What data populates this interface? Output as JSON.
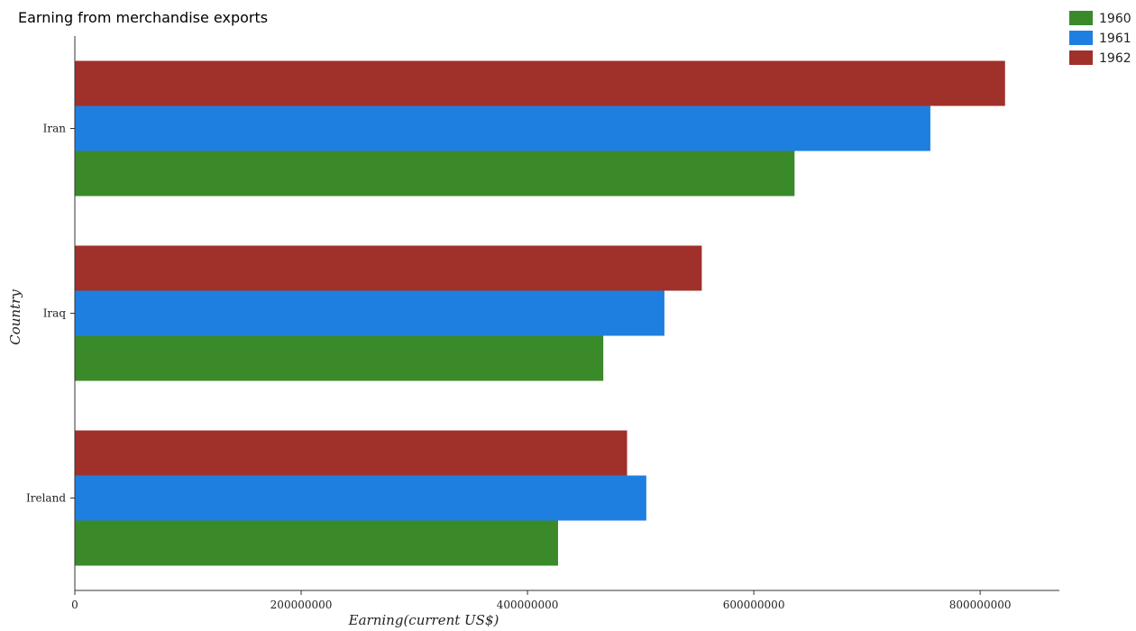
{
  "chart_data": {
    "type": "bar",
    "orientation": "horizontal",
    "title": "Earning from merchandise exports",
    "xlabel": "Earning(current US$)",
    "ylabel": "Country",
    "categories": [
      "Iran",
      "Iraq",
      "Ireland"
    ],
    "series": [
      {
        "name": "1960",
        "color": "#3a8a2a",
        "values": [
          636000000,
          467000000,
          427000000
        ]
      },
      {
        "name": "1961",
        "color": "#1f7fe0",
        "values": [
          756000000,
          521000000,
          505000000
        ]
      },
      {
        "name": "1962",
        "color": "#a0302a",
        "values": [
          822000000,
          554000000,
          488000000
        ]
      }
    ],
    "xlim": [
      0,
      870000000
    ],
    "xticks": [
      0,
      200000000,
      400000000,
      600000000,
      800000000
    ],
    "xtick_labels": [
      "0",
      "200000000",
      "400000000",
      "600000000",
      "800000000"
    ],
    "grid": false,
    "legend_position": "top-right"
  }
}
